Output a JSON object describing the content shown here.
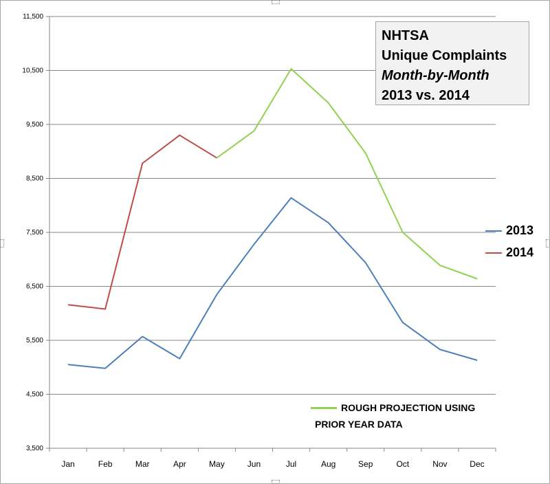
{
  "chart_data": {
    "type": "line",
    "title_lines": [
      "NHTSA",
      "Unique Complaints",
      "Month-by-Month",
      "2013 vs. 2014"
    ],
    "categories": [
      "Jan",
      "Feb",
      "Mar",
      "Apr",
      "May",
      "Jun",
      "Jul",
      "Aug",
      "Sep",
      "Oct",
      "Nov",
      "Dec"
    ],
    "ylim": [
      3500,
      11500
    ],
    "yticks": [
      3500,
      4500,
      5500,
      6500,
      7500,
      8500,
      9500,
      10500,
      11500
    ],
    "ytick_labels": [
      "3,500",
      "4,500",
      "5,500",
      "6,500",
      "7,500",
      "8,500",
      "9,500",
      "10,500",
      "11,500"
    ],
    "grid": true,
    "series": [
      {
        "name": "2013",
        "color": "#4a7ebb",
        "values": [
          5050,
          4980,
          5570,
          5160,
          6350,
          7280,
          8140,
          7680,
          6940,
          5830,
          5330,
          5130
        ]
      },
      {
        "name": "2014",
        "color": "#be4b48",
        "values": [
          6160,
          6080,
          8780,
          9300,
          8880,
          null,
          null,
          null,
          null,
          null,
          null,
          null
        ]
      },
      {
        "name": "projection",
        "color": "#92d050",
        "values": [
          null,
          null,
          null,
          null,
          8880,
          9380,
          10530,
          9900,
          8970,
          7500,
          6890,
          6640
        ]
      }
    ],
    "legend": [
      {
        "label": "2013",
        "color": "#4a7ebb"
      },
      {
        "label": "2014",
        "color": "#be4b48"
      }
    ],
    "legend_position": "right",
    "annotation_lines": [
      "ROUGH PROJECTION USING",
      "PRIOR YEAR DATA"
    ]
  }
}
